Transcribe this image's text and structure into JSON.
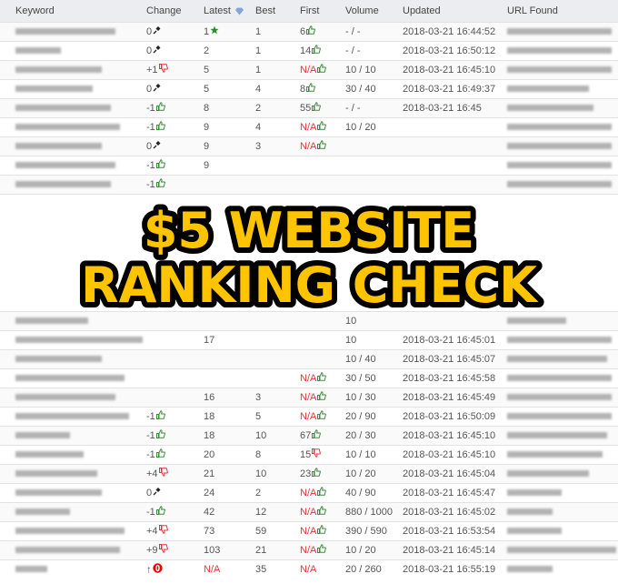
{
  "columns": {
    "keyword": "Keyword",
    "change": "Change",
    "latest": "Latest",
    "best": "Best",
    "first": "First",
    "volume": "Volume",
    "updated": "Updated",
    "url": "URL Found"
  },
  "overlay": {
    "line1": "$5 WEBSITE",
    "line2": "RANKING CHECK",
    "fill": "#FFC400",
    "stroke": "#000000"
  },
  "colors": {
    "up": "#3d8b3d",
    "down": "#e8333a",
    "na": "#e8333a",
    "star": "#2e8b2e"
  },
  "rows": [
    {
      "change": "0",
      "change_icon": "pin",
      "latest": "1",
      "latest_icon": "star",
      "best": "1",
      "first": "6",
      "first_icon": "thumb-up",
      "volume": "- / -",
      "updated": "2018-03-21 16:44:52"
    },
    {
      "change": "0",
      "change_icon": "pin",
      "latest": "2",
      "best": "1",
      "first": "14",
      "first_icon": "thumb-up",
      "volume": "- / -",
      "updated": "2018-03-21 16:50:12"
    },
    {
      "change": "+1",
      "change_icon": "thumb-down",
      "latest": "5",
      "best": "1",
      "first": "N/A",
      "first_icon": "thumb-up",
      "volume": "10 / 10",
      "updated": "2018-03-21 16:45:10"
    },
    {
      "change": "0",
      "change_icon": "pin",
      "latest": "5",
      "best": "4",
      "first": "8",
      "first_icon": "thumb-up",
      "volume": "30 / 40",
      "updated": "2018-03-21 16:49:37"
    },
    {
      "change": "-1",
      "change_icon": "thumb-up",
      "latest": "8",
      "best": "2",
      "first": "55",
      "first_icon": "thumb-up",
      "volume": "- / -",
      "updated": "2018-03-21 16:45"
    },
    {
      "change": "-1",
      "change_icon": "thumb-up",
      "latest": "9",
      "best": "4",
      "first": "N/A",
      "first_icon": "thumb-up",
      "volume": "10 / 20",
      "updated": ""
    },
    {
      "change": "0",
      "change_icon": "pin",
      "latest": "9",
      "best": "3",
      "first": "N/A",
      "first_icon": "thumb-up",
      "volume": "",
      "updated": ""
    },
    {
      "change": "-1",
      "change_icon": "thumb-up",
      "latest": "9",
      "best": "",
      "first": "",
      "volume": "",
      "updated": ""
    },
    {
      "change": "-1",
      "change_icon": "thumb-up",
      "latest": "",
      "best": "",
      "first": "",
      "volume": "",
      "updated": ""
    },
    {
      "change": "",
      "latest": "",
      "best": "",
      "first": "",
      "volume": "10",
      "updated": ""
    },
    {
      "change": "",
      "latest": "17",
      "best": "",
      "first": "",
      "volume": "10",
      "updated": "2018-03-21 16:45:01"
    },
    {
      "change": "",
      "latest": "",
      "best": "",
      "first": "",
      "volume": "10 / 40",
      "updated": "2018-03-21 16:45:07"
    },
    {
      "change": "",
      "latest": "",
      "best": "",
      "first": "N/A",
      "first_icon": "thumb-up",
      "volume": "30 / 50",
      "updated": "2018-03-21 16:45:58"
    },
    {
      "change": "",
      "latest": "16",
      "best": "3",
      "first": "N/A",
      "first_icon": "thumb-up",
      "volume": "10 / 30",
      "updated": "2018-03-21 16:45:49"
    },
    {
      "change": "-1",
      "change_icon": "thumb-up",
      "latest": "18",
      "best": "5",
      "first": "N/A",
      "first_icon": "thumb-up",
      "volume": "20 / 90",
      "updated": "2018-03-21 16:50:09"
    },
    {
      "change": "-1",
      "change_icon": "thumb-up",
      "latest": "18",
      "best": "10",
      "first": "67",
      "first_icon": "thumb-up",
      "volume": "20 / 30",
      "updated": "2018-03-21 16:45:10"
    },
    {
      "change": "-1",
      "change_icon": "thumb-up",
      "latest": "20",
      "best": "8",
      "first": "15",
      "first_icon": "thumb-down",
      "volume": "10 / 10",
      "updated": "2018-03-21 16:45:10"
    },
    {
      "change": "+4",
      "change_icon": "thumb-down",
      "latest": "21",
      "best": "10",
      "first": "23",
      "first_icon": "thumb-up",
      "volume": "10 / 20",
      "updated": "2018-03-21 16:45:04"
    },
    {
      "change": "0",
      "change_icon": "pin",
      "latest": "24",
      "best": "2",
      "first": "N/A",
      "first_icon": "thumb-up",
      "volume": "40 / 90",
      "updated": "2018-03-21 16:45:47"
    },
    {
      "change": "-1",
      "change_icon": "thumb-up",
      "latest": "42",
      "best": "12",
      "first": "N/A",
      "first_icon": "thumb-up",
      "volume": "880 / 1000",
      "updated": "2018-03-21 16:45:02"
    },
    {
      "change": "+4",
      "change_icon": "thumb-down",
      "latest": "73",
      "best": "59",
      "first": "N/A",
      "first_icon": "thumb-up",
      "volume": "390 / 590",
      "updated": "2018-03-21 16:53:54"
    },
    {
      "change": "+9",
      "change_icon": "thumb-down",
      "latest": "103",
      "best": "21",
      "first": "N/A",
      "first_icon": "thumb-up",
      "volume": "10 / 20",
      "updated": "2018-03-21 16:45:14"
    },
    {
      "change": "↑",
      "change_icon": "new-badge",
      "latest": "N/A",
      "best": "35",
      "first": "N/A",
      "volume": "20 / 260",
      "updated": "2018-03-21 16:55:19"
    }
  ]
}
